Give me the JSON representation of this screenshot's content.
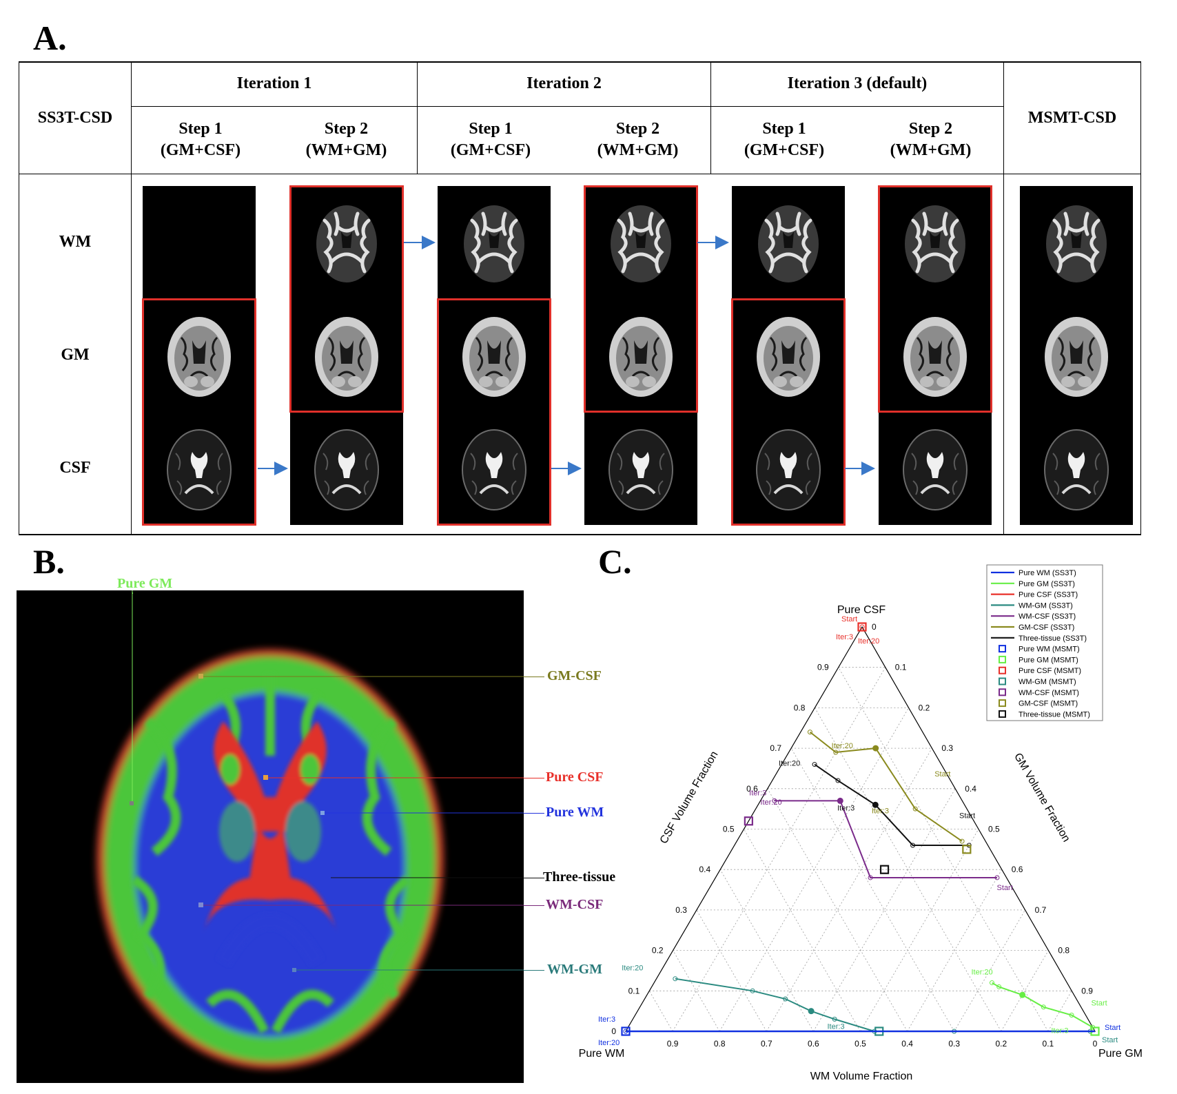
{
  "panels": {
    "a": "A.",
    "b": "B.",
    "c": "C."
  },
  "table": {
    "corner": "SS3T-CSD",
    "msmt": "MSMT-CSD",
    "iterations": [
      "Iteration 1",
      "Iteration 2",
      "Iteration 3 (default)"
    ],
    "steps": [
      {
        "title": "Step 1",
        "sub": "(GM+CSF)"
      },
      {
        "title": "Step 2",
        "sub": "(WM+GM)"
      },
      {
        "title": "Step 1",
        "sub": "(GM+CSF)"
      },
      {
        "title": "Step 2",
        "sub": "(WM+GM)"
      },
      {
        "title": "Step 1",
        "sub": "(GM+CSF)"
      },
      {
        "title": "Step 2",
        "sub": "(WM+GM)"
      }
    ],
    "rows": [
      "WM",
      "GM",
      "CSF"
    ]
  },
  "panel_b": {
    "labels": [
      {
        "text": "Pure GM",
        "color": "#7dea5a"
      },
      {
        "text": "GM-CSF",
        "color": "#7a7a1e"
      },
      {
        "text": "Pure CSF",
        "color": "#e8302a"
      },
      {
        "text": "Pure WM",
        "color": "#2233dd"
      },
      {
        "text": "Three-tissue",
        "color": "#000000"
      },
      {
        "text": "WM-CSF",
        "color": "#7a2a7a"
      },
      {
        "text": "WM-GM",
        "color": "#2a7a7a"
      }
    ]
  },
  "chart_data": {
    "type": "scatter",
    "subtype": "ternary",
    "vertices": {
      "top": "Pure CSF",
      "left": "Pure WM",
      "right": "Pure GM"
    },
    "axis_labels": {
      "left": "CSF Volume Fraction",
      "right": "GM Volume Fraction",
      "bottom": "WM Volume Fraction"
    },
    "left_ticks": [
      "0",
      "0.1",
      "0.2",
      "0.3",
      "0.4",
      "0.5",
      "0.6",
      "0.7",
      "0.8",
      "0.9"
    ],
    "right_ticks": [
      "0",
      "0.1",
      "0.2",
      "0.3",
      "0.4",
      "0.5",
      "0.6",
      "0.7",
      "0.8",
      "0.9"
    ],
    "bottom_ticks": [
      "0.9",
      "0.8",
      "0.7",
      "0.6",
      "0.5",
      "0.4",
      "0.3",
      "0.2",
      "0.1",
      "0"
    ],
    "grid": true,
    "legend_position": "top-right",
    "series": [
      {
        "name": "Pure WM (SS3T)",
        "color": "#1030e0",
        "points": [
          [
            0,
            0,
            1
          ]
        ]
      },
      {
        "name": "Pure GM (SS3T)",
        "color": "#66ee44",
        "points": [
          [
            0.01,
            0.99,
            0
          ],
          [
            0.04,
            0.93,
            0.03
          ],
          [
            0.06,
            0.86,
            0.08
          ],
          [
            0.09,
            0.8,
            0.11
          ],
          [
            0.11,
            0.74,
            0.15
          ],
          [
            0.12,
            0.72,
            0.16
          ]
        ]
      },
      {
        "name": "Pure CSF (SS3T)",
        "color": "#e8302a",
        "points": [
          [
            1,
            0,
            0
          ]
        ]
      },
      {
        "name": "WM-GM (SS3T)",
        "color": "#2a8a80",
        "points": [
          [
            0,
            0.99,
            0.01
          ],
          [
            0,
            0.7,
            0.3
          ],
          [
            0,
            0.53,
            0.47
          ],
          [
            0.03,
            0.43,
            0.54
          ],
          [
            0.05,
            0.37,
            0.58
          ],
          [
            0.08,
            0.3,
            0.62
          ],
          [
            0.1,
            0.22,
            0.68
          ],
          [
            0.13,
            0.04,
            0.83
          ]
        ]
      },
      {
        "name": "WM-CSF (SS3T)",
        "color": "#7a2a8a",
        "points": [
          [
            0.38,
            0.6,
            0.02
          ],
          [
            0.38,
            0.33,
            0.29
          ],
          [
            0.57,
            0.17,
            0.26
          ],
          [
            0.57,
            0.03,
            0.4
          ]
        ]
      },
      {
        "name": "GM-CSF (SS3T)",
        "color": "#8a8a1e",
        "points": [
          [
            0.47,
            0.48,
            0.05
          ],
          [
            0.55,
            0.34,
            0.11
          ],
          [
            0.7,
            0.18,
            0.12
          ],
          [
            0.69,
            0.1,
            0.21
          ],
          [
            0.74,
            0.02,
            0.24
          ]
        ]
      },
      {
        "name": "Three-tissue (SS3T)",
        "color": "#111111",
        "points": [
          [
            0.46,
            0.5,
            0.04
          ],
          [
            0.46,
            0.38,
            0.16
          ],
          [
            0.56,
            0.25,
            0.19
          ],
          [
            0.62,
            0.14,
            0.24
          ],
          [
            0.66,
            0.07,
            0.27
          ]
        ]
      },
      {
        "name": "Pure WM (MSMT)",
        "color": "#1030e0",
        "points": [
          [
            0,
            0,
            1
          ]
        ]
      },
      {
        "name": "Pure GM (MSMT)",
        "color": "#66ee44",
        "points": [
          [
            0,
            1,
            0
          ]
        ]
      },
      {
        "name": "Pure CSF (MSMT)",
        "color": "#e8302a",
        "points": [
          [
            1,
            0,
            0
          ]
        ]
      },
      {
        "name": "WM-GM (MSMT)",
        "color": "#2a8a80",
        "points": [
          [
            0,
            0.54,
            0.46
          ]
        ]
      },
      {
        "name": "WM-CSF (MSMT)",
        "color": "#7a2a8a",
        "points": [
          [
            0.52,
            0,
            0.48
          ]
        ]
      },
      {
        "name": "GM-CSF (MSMT)",
        "color": "#8a8a1e",
        "points": [
          [
            0.45,
            0.5,
            0.05
          ]
        ]
      },
      {
        "name": "Three-tissue (MSMT)",
        "color": "#111111",
        "points": [
          [
            0.4,
            0.35,
            0.25
          ]
        ]
      }
    ],
    "annotations": [
      {
        "text": "Start",
        "color": "#e8302a",
        "at": [
          1,
          0,
          0
        ],
        "dx": -30,
        "dy": -8
      },
      {
        "text": "Iter:3",
        "color": "#e8302a",
        "at": [
          1,
          0,
          0
        ],
        "dx": -38,
        "dy": 18
      },
      {
        "text": "Iter:20",
        "color": "#e8302a",
        "at": [
          1,
          0,
          0
        ],
        "dx": -6,
        "dy": 24
      },
      {
        "text": "Iter:20",
        "color": "#8a8a1e",
        "at": [
          0.7,
          0.18,
          0.12
        ],
        "dx": -64,
        "dy": 0
      },
      {
        "text": "Iter:3",
        "color": "#8a8a1e",
        "at": [
          0.57,
          0.24,
          0.19
        ],
        "dx": -2,
        "dy": 18
      },
      {
        "text": "Start",
        "color": "#8a8a1e",
        "at": [
          0.6,
          0.4,
          0
        ],
        "dx": -30,
        "dy": -18
      },
      {
        "text": "Iter:20",
        "color": "#111111",
        "at": [
          0.66,
          0.07,
          0.27
        ],
        "dx": -52,
        "dy": 2
      },
      {
        "text": "Iter:3",
        "color": "#111111",
        "at": [
          0.58,
          0.2,
          0.22
        ],
        "dx": -28,
        "dy": 20
      },
      {
        "text": "Start",
        "color": "#111111",
        "at": [
          0.5,
          0.5,
          0
        ],
        "dx": -28,
        "dy": -16
      },
      {
        "text": "Iter:3",
        "color": "#7a2a8a",
        "at": [
          0.59,
          0.01,
          0.4
        ],
        "dx": -30,
        "dy": 4
      },
      {
        "text": "Iter:20",
        "color": "#7a2a8a",
        "at": [
          0.53,
          0.02,
          0.45
        ],
        "dx": 0,
        "dy": -18
      },
      {
        "text": "Start",
        "color": "#7a2a8a",
        "at": [
          0.38,
          0.62,
          0
        ],
        "dx": -14,
        "dy": 18
      },
      {
        "text": "Iter:20",
        "color": "#2a8a80",
        "at": [
          0.13,
          0.02,
          0.85
        ],
        "dx": -64,
        "dy": -12
      },
      {
        "text": "Iter:3",
        "color": "#2a8a80",
        "at": [
          0.02,
          0.44,
          0.54
        ],
        "dx": -14,
        "dy": 8
      },
      {
        "text": "Start",
        "color": "#2a8a80",
        "at": [
          0,
          1,
          0
        ],
        "dx": 10,
        "dy": 16
      },
      {
        "text": "Iter:20",
        "color": "#66ee44",
        "at": [
          0.12,
          0.72,
          0.16
        ],
        "dx": -30,
        "dy": -12
      },
      {
        "text": "Iter:3",
        "color": "#66ee44",
        "at": [
          0.02,
          0.92,
          0.06
        ],
        "dx": -16,
        "dy": 14
      },
      {
        "text": "Start",
        "color": "#66ee44",
        "at": [
          0.04,
          0.96,
          0
        ],
        "dx": 8,
        "dy": -14
      },
      {
        "text": "Start",
        "color": "#1030e0",
        "at": [
          0,
          1,
          0
        ],
        "dx": 14,
        "dy": -2
      },
      {
        "text": "Iter:3",
        "color": "#1030e0",
        "at": [
          0,
          0,
          1
        ],
        "dx": -40,
        "dy": -14
      },
      {
        "text": "Iter:20",
        "color": "#1030e0",
        "at": [
          0,
          0,
          1
        ],
        "dx": -40,
        "dy": 20
      }
    ]
  }
}
